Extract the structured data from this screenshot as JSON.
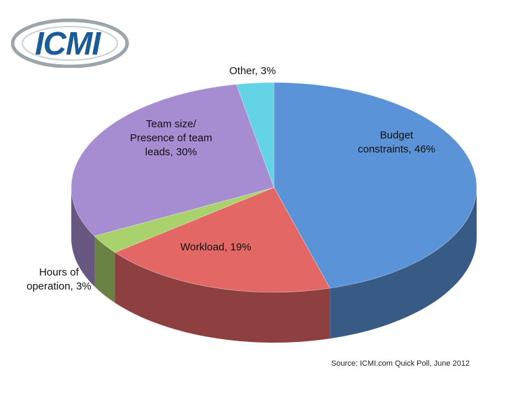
{
  "logo": {
    "text": "ICMI"
  },
  "chart_data": {
    "type": "pie",
    "title": "",
    "slices": [
      {
        "label": "Budget constraints",
        "value": 46,
        "color": "#5b93d8",
        "display": "Budget\nconstraints, 46%"
      },
      {
        "label": "Workload",
        "value": 19,
        "color": "#e36765",
        "display": "Workload, 19%"
      },
      {
        "label": "Hours of operation",
        "value": 3,
        "color": "#a9d26c",
        "display": "Hours of\noperation, 3%"
      },
      {
        "label": "Team size/ Presence of team leads",
        "value": 30,
        "color": "#a68cd0",
        "display": "Team size/\nPresence of team\nleads, 30%"
      },
      {
        "label": "Other",
        "value": 3,
        "color": "#63d3e6",
        "display": "Other, 3%"
      }
    ]
  },
  "source": "Source: ICMI.com Quick Poll, June 2012"
}
